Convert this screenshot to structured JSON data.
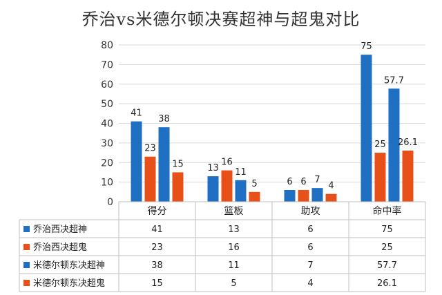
{
  "chart_data": {
    "type": "bar",
    "title": "乔治vs米德尔顿决赛超神与超鬼对比",
    "categories": [
      "得分",
      "篮板",
      "助攻",
      "命中率"
    ],
    "ylim": [
      0,
      80
    ],
    "yticks": [
      0,
      10,
      20,
      30,
      40,
      50,
      60,
      70,
      80
    ],
    "grid": true,
    "legend_placement": "data-table-left",
    "series": [
      {
        "name": "乔治西决超神",
        "color": "#1F6FC3",
        "values": [
          41,
          13,
          6,
          75
        ],
        "labels": [
          "41",
          "13",
          "6",
          "75"
        ]
      },
      {
        "name": "乔治西决超鬼",
        "color": "#E8501A",
        "values": [
          23,
          16,
          6,
          25
        ],
        "labels": [
          "23",
          "16",
          "6",
          "25"
        ]
      },
      {
        "name": "米德尔顿东决超神",
        "color": "#1F6FC3",
        "values": [
          38,
          11,
          7,
          57.7
        ],
        "labels": [
          "38",
          "11",
          "7",
          "57.7"
        ]
      },
      {
        "name": "米德尔顿东决超鬼",
        "color": "#E8501A",
        "values": [
          15,
          5,
          4,
          26.1
        ],
        "labels": [
          "15",
          "5",
          "4",
          "26.1"
        ]
      }
    ]
  }
}
